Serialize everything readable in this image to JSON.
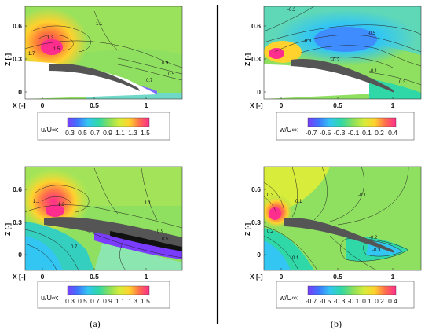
{
  "chart_data": [
    {
      "type": "heatmap",
      "panel": "top-left",
      "quantity_label": "u/U∞:",
      "xlabel": "X [-]",
      "ylabel": "Z [-]",
      "x_ticks": [
        "0",
        "0.5",
        "1"
      ],
      "y_ticks": [
        "0",
        "0.3",
        "0.6"
      ],
      "colorbar_ticks": [
        "0.3",
        "0.5",
        "0.7",
        "0.9",
        "1.1",
        "1.3",
        "1.5"
      ],
      "contour_labels": [
        "1.1",
        "1.3",
        "1.5",
        "1.7",
        "0.9",
        "0.7",
        "0.5"
      ]
    },
    {
      "type": "heatmap",
      "panel": "bottom-left",
      "quantity_label": "u/U∞:",
      "xlabel": "X [-]",
      "ylabel": "Z [-]",
      "x_ticks": [
        "0",
        "0.5",
        "1"
      ],
      "y_ticks": [
        "0",
        "0.3",
        "0.6"
      ],
      "colorbar_ticks": [
        "0.3",
        "0.5",
        "0.7",
        "0.9",
        "1.1",
        "1.3",
        "1.5"
      ],
      "contour_labels": [
        "1.1",
        "1.3",
        "1.5",
        "0.9",
        "0.7",
        "0.5"
      ]
    },
    {
      "type": "heatmap",
      "panel": "top-right",
      "quantity_label": "w/U∞:",
      "xlabel": "X [-]",
      "ylabel": "Z [-]",
      "x_ticks": [
        "0",
        "0.5",
        "1"
      ],
      "y_ticks": [
        "0",
        "0.3",
        "0.6"
      ],
      "colorbar_ticks": [
        "-0.7",
        "-0.5",
        "-0.3",
        "-0.1",
        "0.1",
        "0.2",
        "0.4"
      ],
      "contour_labels": [
        "-0.3",
        "-0.5",
        "-0.2",
        "-0.1",
        "0.3"
      ]
    },
    {
      "type": "heatmap",
      "panel": "bottom-right",
      "quantity_label": "w/U∞:",
      "xlabel": "X [-]",
      "ylabel": "Z [-]",
      "x_ticks": [
        "0",
        "0.5",
        "1"
      ],
      "y_ticks": [
        "0",
        "0.3",
        "0.6"
      ],
      "colorbar_ticks": [
        "-0.7",
        "-0.5",
        "-0.3",
        "-0.1",
        "0.1",
        "0.2",
        "0.4"
      ],
      "contour_labels": [
        "0.3",
        "0.2",
        "0.1",
        "-0.1",
        "-0.2",
        "-0.3"
      ]
    }
  ],
  "captions": [
    "(a)",
    "(b)"
  ],
  "colors": {
    "background_u": "#8fe060",
    "airfoil": "#555555",
    "divider": "#000000"
  }
}
